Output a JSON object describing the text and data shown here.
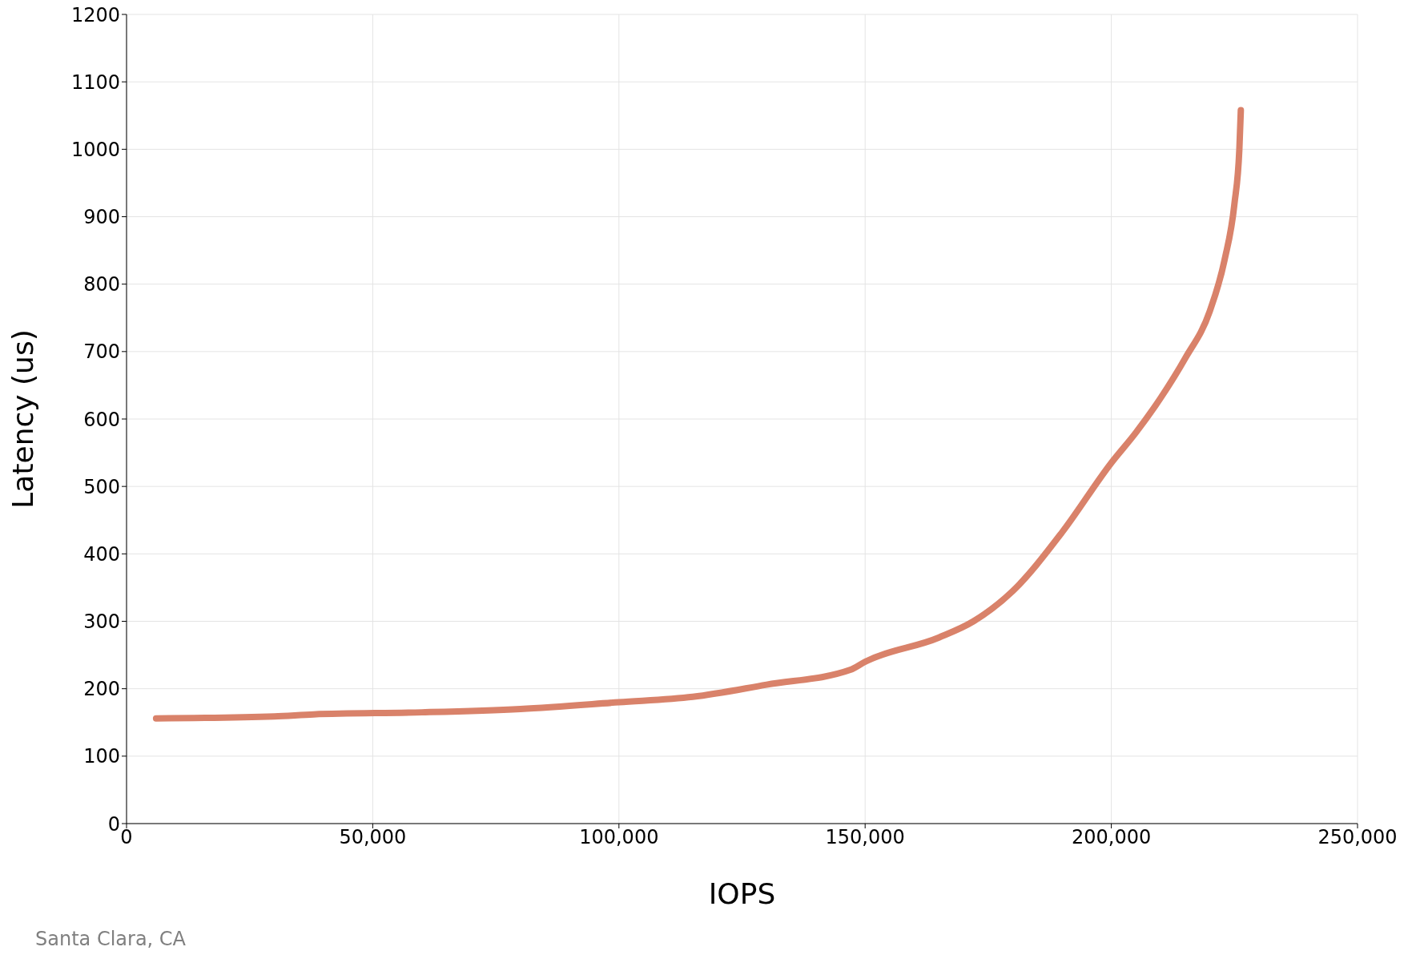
{
  "chart_data": {
    "type": "line",
    "xlabel": "IOPS",
    "ylabel": "Latency (us)",
    "x": [
      6000,
      30000,
      38000,
      60000,
      80000,
      100000,
      115000,
      130000,
      147000,
      150000,
      165000,
      172000,
      180000,
      190000,
      200000,
      205000,
      210000,
      215000,
      220000,
      223000,
      225000,
      226000,
      226300
    ],
    "series": [
      {
        "color": "#d9826a",
        "values": [
          156,
          159,
          162,
          165,
          170,
          180,
          188,
          206,
          228,
          240,
          276,
          300,
          345,
          432,
          535,
          580,
          631,
          690,
          760,
          836,
          919,
          1000,
          1058
        ]
      }
    ],
    "xlim": [
      0,
      250000
    ],
    "xticks": [
      {
        "value": 0,
        "label": "0"
      },
      {
        "value": 50000,
        "label": "50,000"
      },
      {
        "value": 100000,
        "label": "100,000"
      },
      {
        "value": 150000,
        "label": "150,000"
      },
      {
        "value": 200000,
        "label": "200,000"
      },
      {
        "value": 250000,
        "label": "250,000"
      }
    ],
    "ylim": [
      0,
      1200
    ],
    "yticks": [
      0,
      100,
      200,
      300,
      400,
      500,
      600,
      700,
      800,
      900,
      1000,
      1100,
      1200
    ],
    "grid": true,
    "marker": "none",
    "line_style": "solid",
    "annotations": [
      "Santa Clara, CA"
    ]
  }
}
